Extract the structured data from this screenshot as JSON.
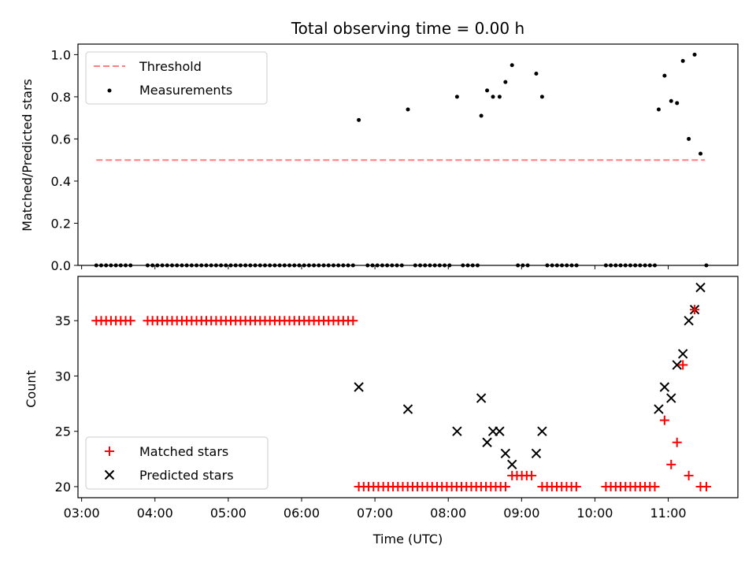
{
  "colors": {
    "threshold": "#ff7f7f",
    "measurement": "#000000",
    "matched": "#ff0000",
    "predicted": "#000000"
  },
  "chart_data": {
    "title": "Total observing time = 0.00 h",
    "x_unit": "UTC hours",
    "xlim": [
      2.95,
      11.95
    ],
    "xticks": [
      3,
      4,
      5,
      6,
      7,
      8,
      9,
      10,
      11
    ],
    "xtick_labels": [
      "03:00",
      "04:00",
      "05:00",
      "06:00",
      "07:00",
      "08:00",
      "09:00",
      "10:00",
      "11:00"
    ],
    "xlabel": "Time (UTC)",
    "grid": false,
    "panels": [
      {
        "type": "scatter",
        "ylabel": "Matched/Predicted stars",
        "ylim": [
          0,
          1.05
        ],
        "yticks": [
          0.0,
          0.2,
          0.4,
          0.6,
          0.8,
          1.0
        ],
        "ytick_labels": [
          "0.0",
          "0.2",
          "0.4",
          "0.6",
          "0.8",
          "1.0"
        ],
        "legend_position": "top-left",
        "legend": [
          "Threshold",
          "Measurements"
        ],
        "threshold": {
          "name": "Threshold",
          "value": 0.5,
          "x": [
            3.2,
            11.5
          ]
        },
        "zero_runs": [
          {
            "start": 3.2,
            "end": 3.7,
            "step": 0.0667
          },
          {
            "start": 3.9,
            "end": 6.7,
            "step": 0.0667
          },
          {
            "start": 6.9,
            "end": 7.35,
            "step": 0.0667
          },
          {
            "start": 7.55,
            "end": 8.05,
            "step": 0.0667
          },
          {
            "start": 8.2,
            "end": 8.4,
            "step": 0.0667
          },
          {
            "start": 8.95,
            "end": 9.1,
            "step": 0.0667
          },
          {
            "start": 9.35,
            "end": 9.75,
            "step": 0.0667
          },
          {
            "start": 10.15,
            "end": 10.8,
            "step": 0.0667
          },
          {
            "start": 11.52,
            "end": 11.52,
            "step": 0.0667
          }
        ],
        "points": [
          [
            6.78,
            0.69
          ],
          [
            7.45,
            0.74
          ],
          [
            8.12,
            0.8
          ],
          [
            8.45,
            0.71
          ],
          [
            8.53,
            0.83
          ],
          [
            8.61,
            0.8
          ],
          [
            8.7,
            0.8
          ],
          [
            8.78,
            0.87
          ],
          [
            8.87,
            0.95
          ],
          [
            9.2,
            0.91
          ],
          [
            9.28,
            0.8
          ],
          [
            10.87,
            0.74
          ],
          [
            10.95,
            0.9
          ],
          [
            11.04,
            0.78
          ],
          [
            11.12,
            0.77
          ],
          [
            11.2,
            0.97
          ],
          [
            11.28,
            0.6
          ],
          [
            11.36,
            1.0
          ],
          [
            11.44,
            0.53
          ]
        ]
      },
      {
        "type": "scatter",
        "ylabel": "Count",
        "ylim": [
          19.0,
          39.0
        ],
        "yticks": [
          20,
          25,
          30,
          35
        ],
        "ytick_labels": [
          "20",
          "25",
          "30",
          "35"
        ],
        "legend_position": "bottom-left",
        "series": [
          {
            "name": "Matched stars",
            "marker": "plus",
            "runs": [
              {
                "start": 3.2,
                "end": 3.7,
                "step": 0.0667,
                "y": 35
              },
              {
                "start": 3.9,
                "end": 6.7,
                "step": 0.0667,
                "y": 35
              },
              {
                "start": 6.78,
                "end": 8.75,
                "step": 0.0667,
                "y": 20
              },
              {
                "start": 8.87,
                "end": 9.15,
                "step": 0.0667,
                "y": 21
              },
              {
                "start": 9.28,
                "end": 9.75,
                "step": 0.0667,
                "y": 20
              },
              {
                "start": 10.15,
                "end": 10.8,
                "step": 0.0667,
                "y": 20
              }
            ],
            "points": [
              [
                10.95,
                26
              ],
              [
                11.04,
                22
              ],
              [
                11.12,
                24
              ],
              [
                11.2,
                31
              ],
              [
                11.28,
                21
              ],
              [
                11.36,
                36
              ],
              [
                11.44,
                20
              ],
              [
                11.52,
                20
              ]
            ]
          },
          {
            "name": "Predicted stars",
            "marker": "x",
            "points": [
              [
                6.78,
                29
              ],
              [
                7.45,
                27
              ],
              [
                8.12,
                25
              ],
              [
                8.45,
                28
              ],
              [
                8.53,
                24
              ],
              [
                8.61,
                25
              ],
              [
                8.7,
                25
              ],
              [
                8.78,
                23
              ],
              [
                8.87,
                22
              ],
              [
                9.2,
                23
              ],
              [
                9.28,
                25
              ],
              [
                10.87,
                27
              ],
              [
                10.95,
                29
              ],
              [
                11.04,
                28
              ],
              [
                11.12,
                31
              ],
              [
                11.2,
                32
              ],
              [
                11.28,
                35
              ],
              [
                11.36,
                36
              ],
              [
                11.44,
                38
              ]
            ]
          }
        ]
      }
    ]
  }
}
